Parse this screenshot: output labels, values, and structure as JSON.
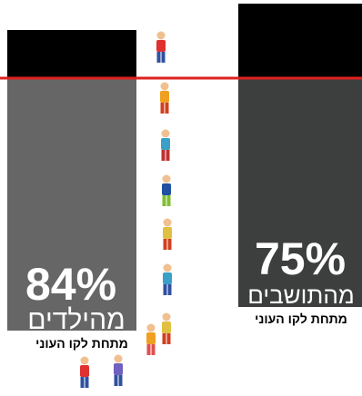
{
  "chart_data": {
    "type": "bar",
    "title": "",
    "xlabel": "",
    "ylabel": "",
    "ylim": [
      0,
      100
    ],
    "categories": [
      "children",
      "residents"
    ],
    "bars": [
      {
        "value": 84,
        "value_label": "84%",
        "label_word": "מהילדים",
        "caption": "מתחת לקו העוני",
        "upper_color": "#000000",
        "lower_color": "#666666"
      },
      {
        "value": 75,
        "value_label": "75%",
        "label_word": "מהתושבים",
        "caption": "מתחת לקו העוני",
        "upper_color": "#000000",
        "lower_color": "#3d3e3e"
      }
    ],
    "poverty_line": {
      "color": "#e02020"
    },
    "people_tower": {
      "figure_shirt_colors": [
        "#e03030",
        "#f0a020",
        "#3aa0c8",
        "#2050a0",
        "#e0c040",
        "#3aa0c8",
        "#e0c040"
      ],
      "figure_pant_colors": [
        "#3050a0",
        "#d04020",
        "#c03030",
        "#80c030",
        "#d04020",
        "#3050a0",
        "#d04020"
      ],
      "ground_figure_colors": [
        "#e03030",
        "#7060c0"
      ]
    }
  }
}
